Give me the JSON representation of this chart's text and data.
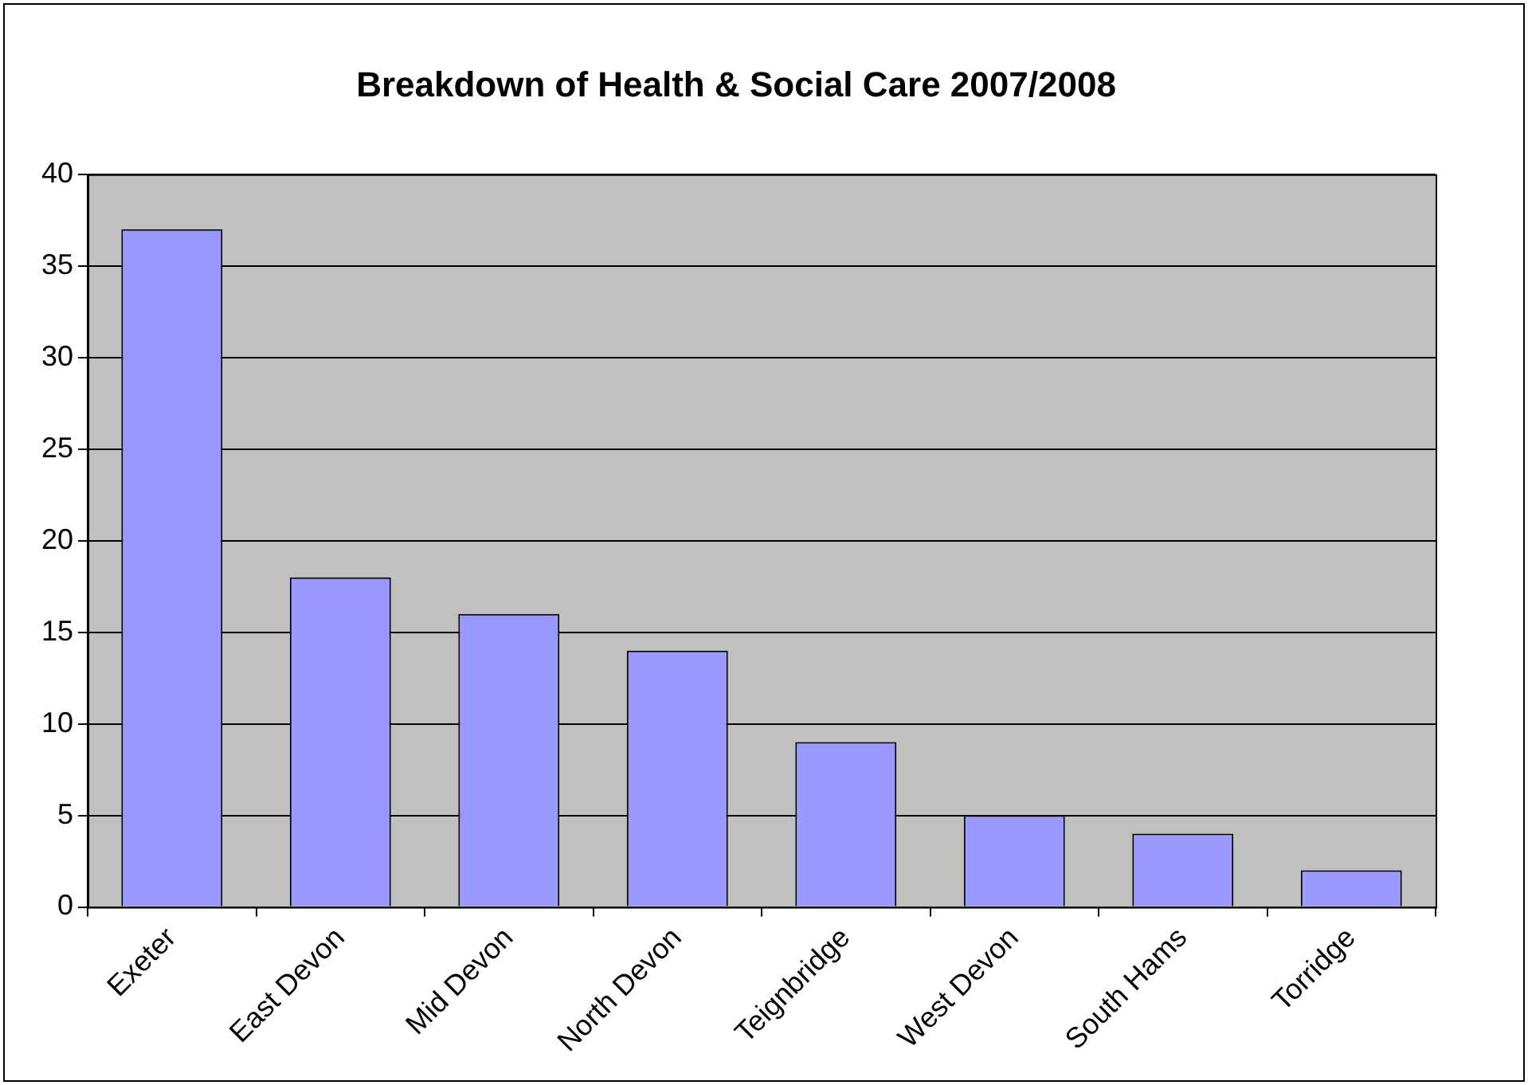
{
  "chart_data": {
    "type": "bar",
    "title": "Breakdown of Health & Social Care 2007/2008",
    "categories": [
      "Exeter",
      "East Devon",
      "Mid Devon",
      "North Devon",
      "Teignbridge",
      "West Devon",
      "South Hams",
      "Torridge"
    ],
    "values": [
      37,
      18,
      16,
      14,
      9,
      5,
      4,
      2
    ],
    "color": "#9999ff",
    "ylim": [
      0,
      40
    ],
    "yticks": [
      0,
      5,
      10,
      15,
      20,
      25,
      30,
      35,
      40
    ],
    "grid": "y"
  }
}
